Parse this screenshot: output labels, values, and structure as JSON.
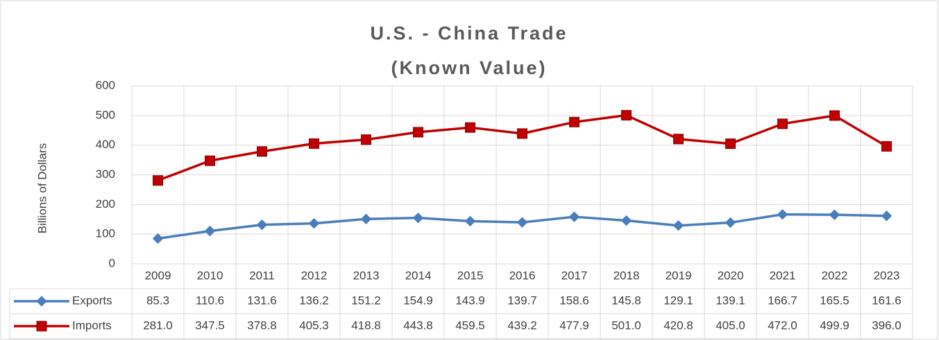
{
  "chart_data": {
    "type": "line",
    "title": "U.S. - China Trade",
    "subtitle": "(Known Value)",
    "y_label": "Billions of Dollars",
    "categories": [
      "2009",
      "2010",
      "2011",
      "2012",
      "2013",
      "2014",
      "2015",
      "2016",
      "2017",
      "2018",
      "2019",
      "2020",
      "2021",
      "2022",
      "2023"
    ],
    "series": [
      {
        "name": "Exports",
        "color": "#4a7ebb",
        "marker": "diamond",
        "values": [
          85.3,
          110.6,
          131.6,
          136.2,
          151.2,
          154.9,
          143.9,
          139.7,
          158.6,
          145.8,
          129.1,
          139.1,
          166.7,
          165.5,
          161.6
        ],
        "value_labels": [
          "85.3",
          "110.6",
          "131.6",
          "136.2",
          "151.2",
          "154.9",
          "143.9",
          "139.7",
          "158.6",
          "145.8",
          "129.1",
          "139.1",
          "166.7",
          "165.5",
          "161.6"
        ]
      },
      {
        "name": "Imports",
        "color": "#c00000",
        "marker": "square",
        "values": [
          281,
          347.5,
          378.8,
          405.3,
          418.8,
          443.8,
          459.5,
          439.2,
          477.9,
          501,
          420.8,
          405,
          472,
          499.9,
          396
        ],
        "value_labels": [
          "281.0",
          "347.5",
          "378.8",
          "405.3",
          "418.8",
          "443.8",
          "459.5",
          "439.2",
          "477.9",
          "501.0",
          "420.8",
          "405.0",
          "472.0",
          "499.9",
          "396.0"
        ]
      }
    ],
    "ylim": [
      0,
      600
    ],
    "yticks": [
      0,
      100,
      200,
      300,
      400,
      500,
      600
    ],
    "grid": true,
    "data_table": true
  }
}
